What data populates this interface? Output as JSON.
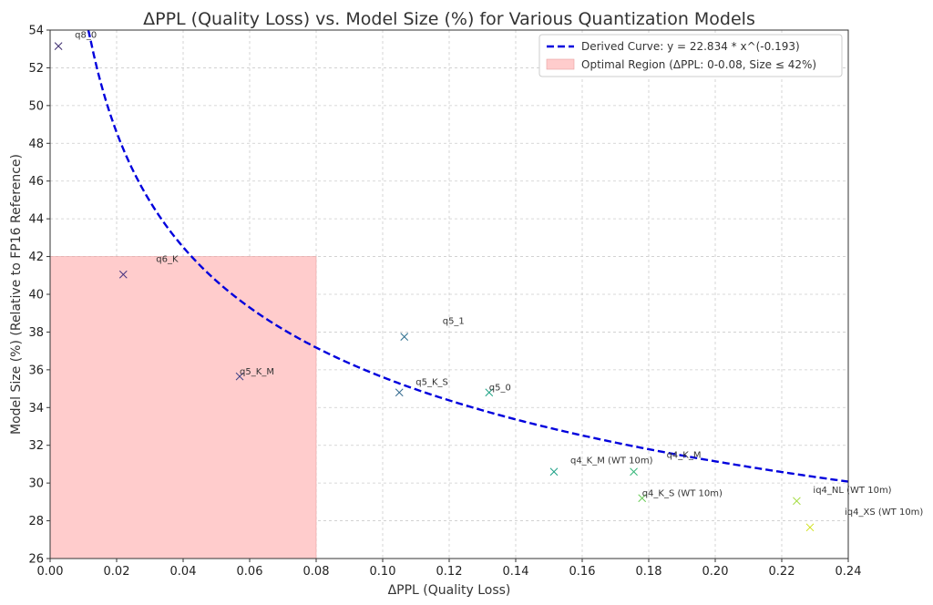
{
  "chart_data": {
    "type": "scatter",
    "title": "ΔPPL (Quality Loss) vs. Model Size (%) for Various Quantization Models",
    "xlabel": "ΔPPL (Quality Loss)",
    "ylabel": "Model Size (%) (Relative to FP16 Reference)",
    "xlim": [
      0,
      0.24
    ],
    "ylim": [
      26,
      54
    ],
    "xticks": [
      "0.00",
      "0.02",
      "0.04",
      "0.06",
      "0.08",
      "0.10",
      "0.12",
      "0.14",
      "0.16",
      "0.18",
      "0.20",
      "0.22",
      "0.24"
    ],
    "yticks": [
      "26",
      "28",
      "30",
      "32",
      "34",
      "36",
      "38",
      "40",
      "42",
      "44",
      "46",
      "48",
      "50",
      "52",
      "54"
    ],
    "grid": true,
    "legend_position": "top-right",
    "points": [
      {
        "label": "q8_0",
        "x": 0.0025,
        "y": 53.15,
        "color": "#3b2a6e"
      },
      {
        "label": "q6_K",
        "x": 0.022,
        "y": 41.05,
        "color": "#463480"
      },
      {
        "label": "q5_K_M",
        "x": 0.057,
        "y": 35.65,
        "color": "#414487"
      },
      {
        "label": "q5_1",
        "x": 0.1065,
        "y": 37.75,
        "color": "#2e6f8e"
      },
      {
        "label": "q5_K_S",
        "x": 0.105,
        "y": 34.8,
        "color": "#31688e"
      },
      {
        "label": "q5_0",
        "x": 0.132,
        "y": 34.8,
        "color": "#20a386"
      },
      {
        "label": "q4_K_M (WT 10m)",
        "x": 0.1515,
        "y": 30.6,
        "color": "#1fa187"
      },
      {
        "label": "q4_K_M",
        "x": 0.1755,
        "y": 30.6,
        "color": "#35b779"
      },
      {
        "label": "q4_K_S (WT 10m)",
        "x": 0.178,
        "y": 29.2,
        "color": "#6ccd5a"
      },
      {
        "label": "iq4_NL (WT 10m)",
        "x": 0.2245,
        "y": 29.05,
        "color": "#a0da39"
      },
      {
        "label": "iq4_XS (WT 10m)",
        "x": 0.2285,
        "y": 27.65,
        "color": "#d0e11c"
      }
    ],
    "curve": {
      "name": "Derived Curve: y = 22.834 * x^(-0.193)",
      "a": 22.834,
      "b": -0.193,
      "x_range": [
        0.0115,
        0.24
      ],
      "color": "#0000dd"
    },
    "region": {
      "name": "Optimal Region (ΔPPL: 0-0.08, Size ≤ 42%)",
      "x_range": [
        0,
        0.08
      ],
      "y_range": [
        26,
        42
      ],
      "color": "#ffcccc"
    }
  }
}
